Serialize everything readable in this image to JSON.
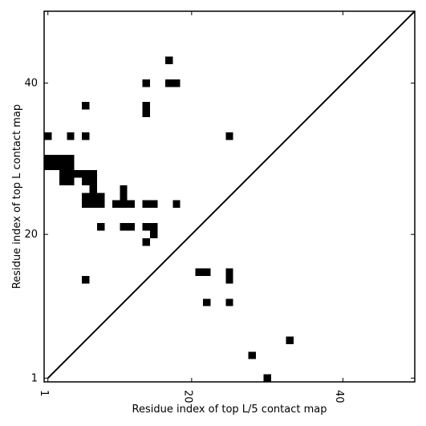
{
  "chart_data": {
    "type": "heatmap",
    "title": "",
    "xlabel": "Residue index of top L/5 contact map",
    "ylabel": "Residue index of top L contact map",
    "xlim": [
      0.5,
      49.5
    ],
    "ylim": [
      0.5,
      49.5
    ],
    "xticks": [
      1,
      20,
      40
    ],
    "yticks": [
      1,
      20,
      40
    ],
    "xtick_labels": [
      "1",
      "20",
      "40"
    ],
    "ytick_labels": [
      "1",
      "20",
      "40"
    ],
    "diagonal": true,
    "grid": false,
    "cells": [
      [
        17,
        43
      ],
      [
        14,
        40
      ],
      [
        17,
        40
      ],
      [
        18,
        40
      ],
      [
        6,
        37
      ],
      [
        14,
        37
      ],
      [
        14,
        36
      ],
      [
        1,
        33
      ],
      [
        4,
        33
      ],
      [
        6,
        33
      ],
      [
        25,
        33
      ],
      [
        1,
        30
      ],
      [
        2,
        30
      ],
      [
        3,
        30
      ],
      [
        4,
        30
      ],
      [
        1,
        29
      ],
      [
        2,
        29
      ],
      [
        3,
        29
      ],
      [
        4,
        29
      ],
      [
        3,
        28
      ],
      [
        4,
        28
      ],
      [
        3,
        27
      ],
      [
        4,
        27
      ],
      [
        5,
        28
      ],
      [
        6,
        28
      ],
      [
        7,
        28
      ],
      [
        6,
        27
      ],
      [
        7,
        27
      ],
      [
        7,
        26
      ],
      [
        6,
        25
      ],
      [
        7,
        25
      ],
      [
        8,
        25
      ],
      [
        6,
        24
      ],
      [
        7,
        24
      ],
      [
        8,
        24
      ],
      [
        11,
        26
      ],
      [
        11,
        25
      ],
      [
        10,
        24
      ],
      [
        11,
        24
      ],
      [
        12,
        24
      ],
      [
        14,
        24
      ],
      [
        15,
        24
      ],
      [
        18,
        24
      ],
      [
        8,
        21
      ],
      [
        11,
        21
      ],
      [
        12,
        21
      ],
      [
        14,
        21
      ],
      [
        15,
        21
      ],
      [
        15,
        20
      ],
      [
        14,
        19
      ],
      [
        21,
        15
      ],
      [
        22,
        15
      ],
      [
        25,
        15
      ],
      [
        25,
        14
      ],
      [
        6,
        14
      ],
      [
        22,
        11
      ],
      [
        25,
        11
      ],
      [
        33,
        6
      ],
      [
        28,
        4
      ],
      [
        30,
        1
      ]
    ]
  }
}
